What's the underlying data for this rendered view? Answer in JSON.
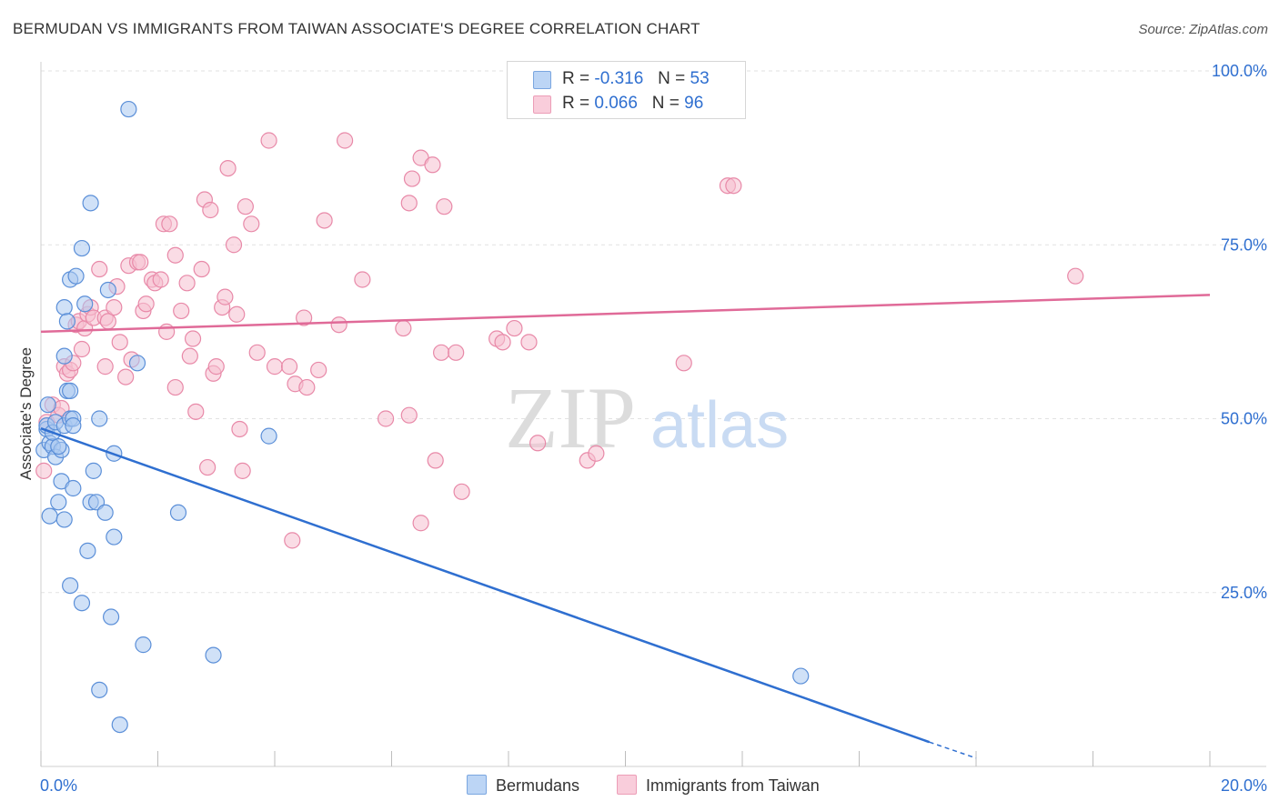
{
  "title": "BERMUDAN VS IMMIGRANTS FROM TAIWAN ASSOCIATE'S DEGREE CORRELATION CHART",
  "source": "Source: ZipAtlas.com",
  "watermark": {
    "zip": "ZIP",
    "atlas": "atlas"
  },
  "legend": {
    "r_label": "R =",
    "n_label": "N =",
    "rows": [
      {
        "r": "-0.316",
        "n": "53"
      },
      {
        "r": "0.066",
        "n": "96"
      }
    ]
  },
  "colors": {
    "blue_fill": "#aac8f0",
    "blue_stroke": "#5b8fd8",
    "blue_line": "#2f6fd0",
    "pink_fill": "#f6bfd0",
    "pink_stroke": "#e889a8",
    "pink_line": "#e06a98",
    "grid": "#e2e2e2",
    "tick_label": "#2f6fd0"
  },
  "chart_data": {
    "type": "scatter",
    "title": "BERMUDAN VS IMMIGRANTS FROM TAIWAN ASSOCIATE'S DEGREE CORRELATION CHART",
    "xlabel": "",
    "ylabel": "Associate's Degree",
    "xlim": [
      0,
      20
    ],
    "ylim": [
      0,
      100
    ],
    "x_tick_labels": [
      "0.0%",
      "20.0%"
    ],
    "y_tick_labels": [
      "100.0%",
      "75.0%",
      "50.0%",
      "25.0%"
    ],
    "y_tick_values": [
      100,
      75,
      50,
      25
    ],
    "legend_position": "bottom",
    "series": [
      {
        "name": "Bermudans",
        "color": "#5b8fd8",
        "r": -0.316,
        "n": 53,
        "trend": {
          "x": [
            0,
            15.2
          ],
          "y": [
            48.6,
            3.5
          ],
          "dashed_to": [
            16,
            1.2
          ]
        },
        "points": [
          [
            0.05,
            45.5
          ],
          [
            0.1,
            48.5
          ],
          [
            0.1,
            49
          ],
          [
            0.12,
            52
          ],
          [
            0.15,
            46.5
          ],
          [
            0.15,
            36
          ],
          [
            0.2,
            46
          ],
          [
            0.2,
            48
          ],
          [
            0.25,
            44.5
          ],
          [
            0.25,
            49.5
          ],
          [
            0.3,
            38
          ],
          [
            0.35,
            45.5
          ],
          [
            0.3,
            46
          ],
          [
            0.35,
            41
          ],
          [
            0.4,
            59
          ],
          [
            0.4,
            49
          ],
          [
            0.4,
            66
          ],
          [
            0.4,
            35.5
          ],
          [
            0.45,
            54
          ],
          [
            0.45,
            64
          ],
          [
            0.5,
            70
          ],
          [
            0.5,
            50
          ],
          [
            0.5,
            54
          ],
          [
            0.55,
            40
          ],
          [
            0.5,
            26
          ],
          [
            0.55,
            50
          ],
          [
            0.55,
            49
          ],
          [
            0.6,
            70.5
          ],
          [
            0.7,
            74.5
          ],
          [
            0.7,
            23.5
          ],
          [
            0.75,
            66.5
          ],
          [
            0.8,
            31
          ],
          [
            0.85,
            81
          ],
          [
            0.85,
            38
          ],
          [
            0.9,
            42.5
          ],
          [
            0.95,
            38
          ],
          [
            1.0,
            50
          ],
          [
            1.0,
            11
          ],
          [
            1.1,
            36.5
          ],
          [
            1.15,
            68.5
          ],
          [
            1.2,
            21.5
          ],
          [
            1.25,
            33
          ],
          [
            1.25,
            45
          ],
          [
            1.35,
            6
          ],
          [
            1.5,
            94.5
          ],
          [
            1.65,
            58
          ],
          [
            1.75,
            17.5
          ],
          [
            2.35,
            36.5
          ],
          [
            2.95,
            16
          ],
          [
            3.9,
            47.5
          ],
          [
            13.0,
            13
          ]
        ]
      },
      {
        "name": "Immigrants from Taiwan",
        "color": "#e889a8",
        "r": 0.066,
        "n": 96,
        "trend": {
          "x": [
            0,
            20
          ],
          "y": [
            62.5,
            67.8
          ]
        },
        "points": [
          [
            0.05,
            42.5
          ],
          [
            0.1,
            49.5
          ],
          [
            0.2,
            52
          ],
          [
            0.3,
            50.5
          ],
          [
            0.35,
            51.5
          ],
          [
            0.4,
            57.5
          ],
          [
            0.45,
            56.5
          ],
          [
            0.5,
            57
          ],
          [
            0.55,
            58
          ],
          [
            0.6,
            63.5
          ],
          [
            0.65,
            64
          ],
          [
            0.7,
            60
          ],
          [
            0.75,
            63
          ],
          [
            0.8,
            65
          ],
          [
            0.85,
            66
          ],
          [
            0.9,
            64.5
          ],
          [
            1.0,
            71.5
          ],
          [
            1.1,
            57.5
          ],
          [
            1.1,
            64.5
          ],
          [
            1.15,
            64
          ],
          [
            1.25,
            66
          ],
          [
            1.3,
            69
          ],
          [
            1.35,
            61
          ],
          [
            1.45,
            56
          ],
          [
            1.5,
            72
          ],
          [
            1.55,
            58.5
          ],
          [
            1.65,
            72.5
          ],
          [
            1.7,
            72.5
          ],
          [
            1.75,
            65.5
          ],
          [
            1.8,
            66.5
          ],
          [
            1.9,
            70
          ],
          [
            1.95,
            69.5
          ],
          [
            2.05,
            70
          ],
          [
            2.1,
            78
          ],
          [
            2.15,
            62.5
          ],
          [
            2.2,
            78
          ],
          [
            2.3,
            73.5
          ],
          [
            2.3,
            54.5
          ],
          [
            2.4,
            65.5
          ],
          [
            2.5,
            69.5
          ],
          [
            2.55,
            59
          ],
          [
            2.6,
            61.5
          ],
          [
            2.65,
            51
          ],
          [
            2.75,
            71.5
          ],
          [
            2.8,
            81.5
          ],
          [
            2.85,
            43
          ],
          [
            2.9,
            80
          ],
          [
            2.95,
            56.5
          ],
          [
            3.0,
            57.5
          ],
          [
            3.1,
            66
          ],
          [
            3.15,
            67.5
          ],
          [
            3.2,
            86
          ],
          [
            3.3,
            75
          ],
          [
            3.35,
            65
          ],
          [
            3.4,
            48.5
          ],
          [
            3.45,
            42.5
          ],
          [
            3.5,
            80.5
          ],
          [
            3.6,
            78
          ],
          [
            3.7,
            59.5
          ],
          [
            3.9,
            90
          ],
          [
            4.0,
            57.5
          ],
          [
            4.25,
            57.5
          ],
          [
            4.3,
            32.5
          ],
          [
            4.35,
            55
          ],
          [
            4.5,
            64.5
          ],
          [
            4.55,
            54.5
          ],
          [
            4.75,
            57
          ],
          [
            4.85,
            78.5
          ],
          [
            5.1,
            63.5
          ],
          [
            5.2,
            90
          ],
          [
            5.5,
            70
          ],
          [
            5.9,
            50
          ],
          [
            6.2,
            63
          ],
          [
            6.3,
            50.5
          ],
          [
            6.3,
            81
          ],
          [
            6.35,
            84.5
          ],
          [
            6.5,
            87.5
          ],
          [
            6.5,
            35
          ],
          [
            6.7,
            86.5
          ],
          [
            6.75,
            44
          ],
          [
            6.85,
            59.5
          ],
          [
            6.9,
            80.5
          ],
          [
            7.1,
            59.5
          ],
          [
            7.2,
            39.5
          ],
          [
            7.8,
            61.5
          ],
          [
            7.9,
            61
          ],
          [
            8.1,
            63
          ],
          [
            8.35,
            61
          ],
          [
            8.5,
            46.5
          ],
          [
            9.35,
            44
          ],
          [
            9.5,
            45
          ],
          [
            11.0,
            58
          ],
          [
            11.75,
            83.5
          ],
          [
            11.85,
            83.5
          ],
          [
            17.7,
            70.5
          ]
        ]
      }
    ]
  }
}
